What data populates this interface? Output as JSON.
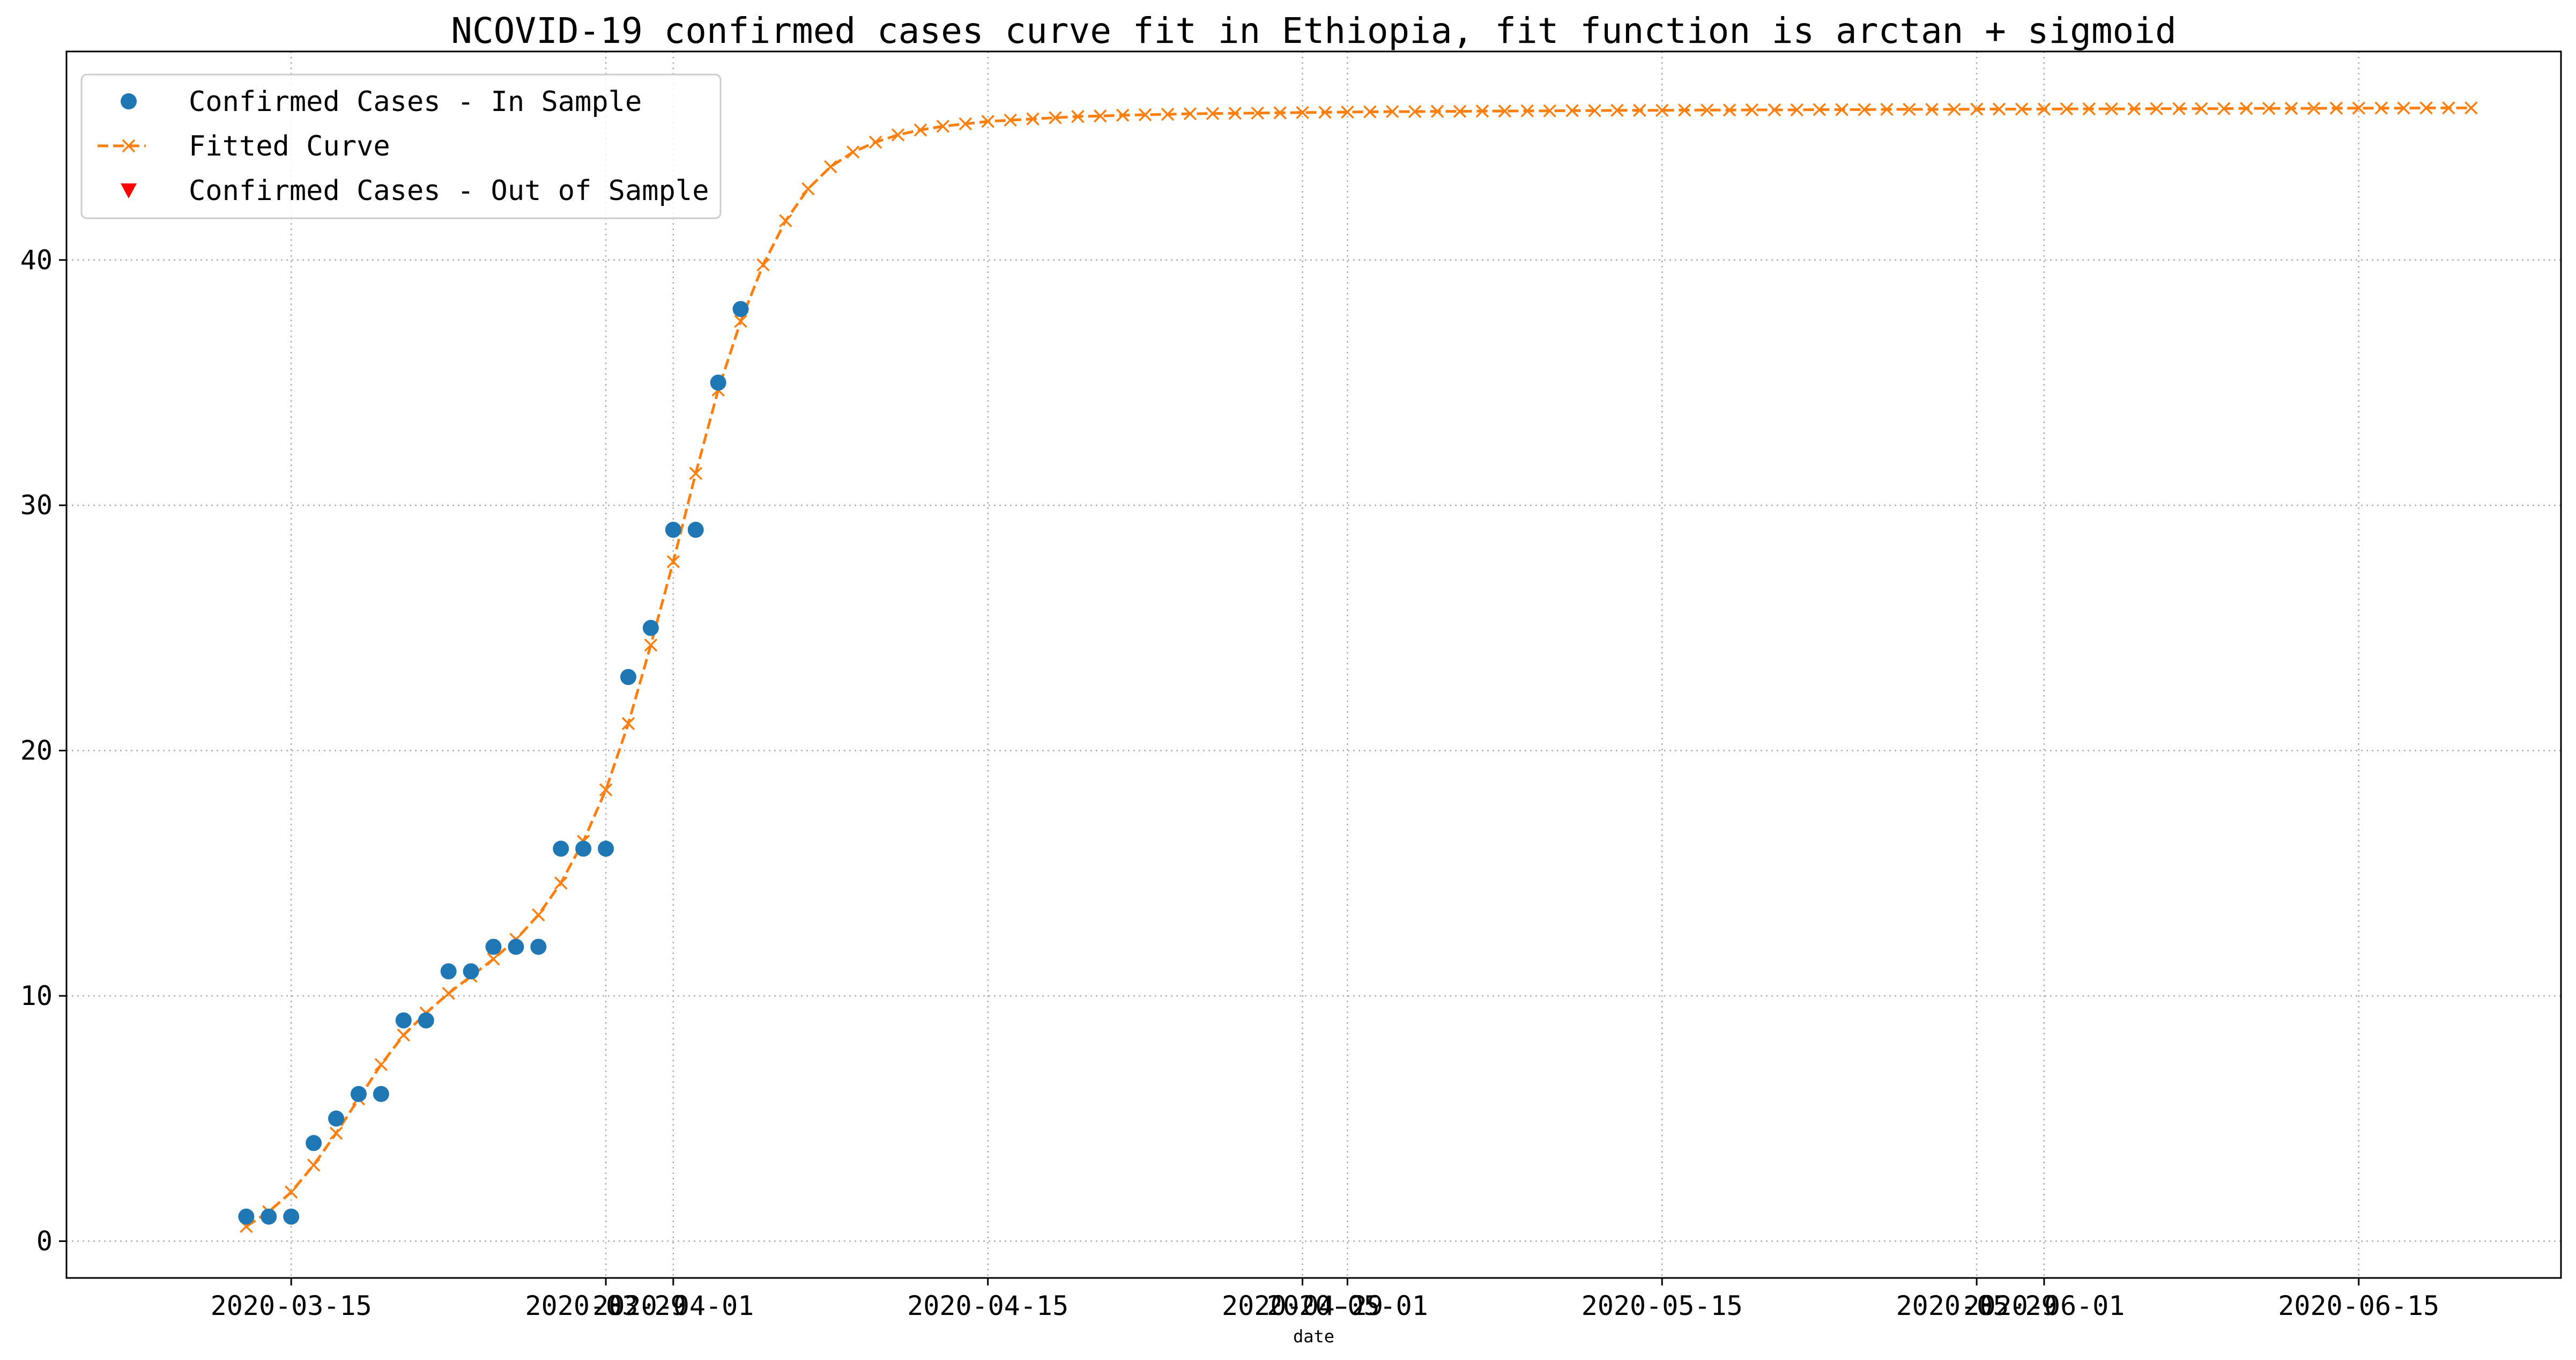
{
  "chart_data": {
    "type": "line",
    "title": "NCOVID-19 confirmed cases curve fit in Ethiopia, fit function is arctan + sigmoid",
    "xlabel": "date",
    "ylabel": "",
    "x_type": "date",
    "xlim": [
      "2020-03-05",
      "2020-06-24"
    ],
    "ylim": [
      -1.5,
      48.5
    ],
    "grid": true,
    "legend_position": "top-left",
    "x_ticks": [
      {
        "date": "2020-03-15",
        "label": "2020-03-15"
      },
      {
        "date": "2020-03-29",
        "label": "2020-03-29"
      },
      {
        "date": "2020-04-01",
        "label": "2020-04-01"
      },
      {
        "date": "2020-04-15",
        "label": "2020-04-15"
      },
      {
        "date": "2020-04-29",
        "label": "2020-04-29"
      },
      {
        "date": "2020-05-01",
        "label": "2020-05-01"
      },
      {
        "date": "2020-05-15",
        "label": "2020-05-15"
      },
      {
        "date": "2020-05-29",
        "label": "2020-05-29"
      },
      {
        "date": "2020-06-01",
        "label": "2020-06-01"
      },
      {
        "date": "2020-06-15",
        "label": "2020-06-15"
      }
    ],
    "y_ticks": [
      0,
      10,
      20,
      30,
      40
    ],
    "colors": {
      "in_sample": "#1f77b4",
      "fitted": "#ff7f0e",
      "out_of_sample": "#ff0000",
      "grid": "#b0b0b0"
    },
    "series": [
      {
        "name": "Confirmed Cases - In Sample",
        "kind": "scatter",
        "marker": "circle",
        "x": [
          "2020-03-13",
          "2020-03-14",
          "2020-03-15",
          "2020-03-16",
          "2020-03-17",
          "2020-03-18",
          "2020-03-19",
          "2020-03-20",
          "2020-03-21",
          "2020-03-22",
          "2020-03-23",
          "2020-03-24",
          "2020-03-25",
          "2020-03-26",
          "2020-03-27",
          "2020-03-28",
          "2020-03-29",
          "2020-03-30",
          "2020-03-31",
          "2020-04-01",
          "2020-04-02",
          "2020-04-03",
          "2020-04-04"
        ],
        "y": [
          1,
          1,
          1,
          4,
          5,
          6,
          6,
          9,
          9,
          11,
          11,
          12,
          12,
          12,
          16,
          16,
          16,
          23,
          25,
          29,
          29,
          35,
          38
        ]
      },
      {
        "name": "Fitted Curve",
        "kind": "line",
        "marker": "x",
        "linestyle": "dashed",
        "start_date": "2020-03-13",
        "end_date": "2020-06-20",
        "y": [
          0.6,
          1.2,
          2.0,
          3.1,
          4.4,
          5.8,
          7.2,
          8.4,
          9.3,
          10.1,
          10.8,
          11.5,
          12.3,
          13.3,
          14.6,
          16.3,
          18.4,
          21.1,
          24.3,
          27.7,
          31.3,
          34.7,
          37.5,
          39.8,
          41.6,
          42.9,
          43.8,
          44.4,
          44.8,
          45.1,
          45.3,
          45.45,
          45.55,
          45.65,
          45.7,
          45.75,
          45.8,
          45.85,
          45.87,
          45.9,
          45.92,
          45.94,
          45.96,
          45.97,
          45.98,
          45.99,
          46.0,
          46.01,
          46.02,
          46.03,
          46.04,
          46.05,
          46.05,
          46.06,
          46.06,
          46.07,
          46.07,
          46.08,
          46.08,
          46.09,
          46.09,
          46.1,
          46.1,
          46.1,
          46.11,
          46.11,
          46.11,
          46.12,
          46.12,
          46.12,
          46.13,
          46.13,
          46.13,
          46.14,
          46.14,
          46.14,
          46.14,
          46.15,
          46.15,
          46.15,
          46.15,
          46.16,
          46.16,
          46.16,
          46.16,
          46.17,
          46.17,
          46.17,
          46.17,
          46.18,
          46.18,
          46.18,
          46.18,
          46.19,
          46.19,
          46.19,
          46.19,
          46.2,
          46.2,
          46.2
        ]
      },
      {
        "name": "Confirmed Cases - Out of Sample",
        "kind": "scatter",
        "marker": "triangle-down",
        "x": [],
        "y": []
      }
    ]
  }
}
